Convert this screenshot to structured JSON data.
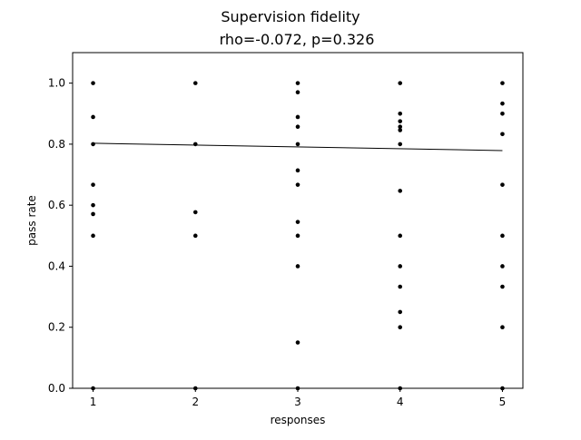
{
  "chart_data": {
    "type": "scatter",
    "title": "Supervision fidelity",
    "subtitle": "rho=-0.072, p=0.326",
    "xlabel": "responses",
    "ylabel": "pass rate",
    "xlim": [
      0.8,
      5.2
    ],
    "ylim": [
      0.0,
      1.1
    ],
    "xticks": [
      1,
      2,
      3,
      4,
      5
    ],
    "xtick_labels": [
      "1",
      "2",
      "3",
      "4",
      "5"
    ],
    "yticks": [
      0.0,
      0.2,
      0.4,
      0.6,
      0.8,
      1.0
    ],
    "ytick_labels": [
      "0.0",
      "0.2",
      "0.4",
      "0.6",
      "0.8",
      "1.0"
    ],
    "grid": false,
    "point_color": "#000000",
    "line_color": "#000000",
    "points": [
      {
        "x": 1,
        "y": 1.0
      },
      {
        "x": 1,
        "y": 0.889
      },
      {
        "x": 1,
        "y": 0.8
      },
      {
        "x": 1,
        "y": 0.667
      },
      {
        "x": 1,
        "y": 0.6
      },
      {
        "x": 1,
        "y": 0.571
      },
      {
        "x": 1,
        "y": 0.5
      },
      {
        "x": 1,
        "y": 0.0
      },
      {
        "x": 2,
        "y": 1.0
      },
      {
        "x": 2,
        "y": 0.8
      },
      {
        "x": 2,
        "y": 0.577
      },
      {
        "x": 2,
        "y": 0.5
      },
      {
        "x": 2,
        "y": 0.0
      },
      {
        "x": 3,
        "y": 1.0
      },
      {
        "x": 3,
        "y": 0.97
      },
      {
        "x": 3,
        "y": 0.889
      },
      {
        "x": 3,
        "y": 0.857
      },
      {
        "x": 3,
        "y": 0.8
      },
      {
        "x": 3,
        "y": 0.714
      },
      {
        "x": 3,
        "y": 0.667
      },
      {
        "x": 3,
        "y": 0.545
      },
      {
        "x": 3,
        "y": 0.5
      },
      {
        "x": 3,
        "y": 0.4
      },
      {
        "x": 3,
        "y": 0.15
      },
      {
        "x": 3,
        "y": 0.0
      },
      {
        "x": 4,
        "y": 1.0
      },
      {
        "x": 4,
        "y": 0.9
      },
      {
        "x": 4,
        "y": 0.875
      },
      {
        "x": 4,
        "y": 0.857
      },
      {
        "x": 4,
        "y": 0.846
      },
      {
        "x": 4,
        "y": 0.8
      },
      {
        "x": 4,
        "y": 0.647
      },
      {
        "x": 4,
        "y": 0.5
      },
      {
        "x": 4,
        "y": 0.4
      },
      {
        "x": 4,
        "y": 0.333
      },
      {
        "x": 4,
        "y": 0.25
      },
      {
        "x": 4,
        "y": 0.2
      },
      {
        "x": 4,
        "y": 0.0
      },
      {
        "x": 5,
        "y": 1.0
      },
      {
        "x": 5,
        "y": 0.933
      },
      {
        "x": 5,
        "y": 0.9
      },
      {
        "x": 5,
        "y": 0.833
      },
      {
        "x": 5,
        "y": 0.667
      },
      {
        "x": 5,
        "y": 0.5
      },
      {
        "x": 5,
        "y": 0.4
      },
      {
        "x": 5,
        "y": 0.333
      },
      {
        "x": 5,
        "y": 0.2
      },
      {
        "x": 5,
        "y": 0.0
      }
    ],
    "trend_line": {
      "x": [
        1,
        5
      ],
      "y": [
        0.803,
        0.779
      ]
    }
  }
}
